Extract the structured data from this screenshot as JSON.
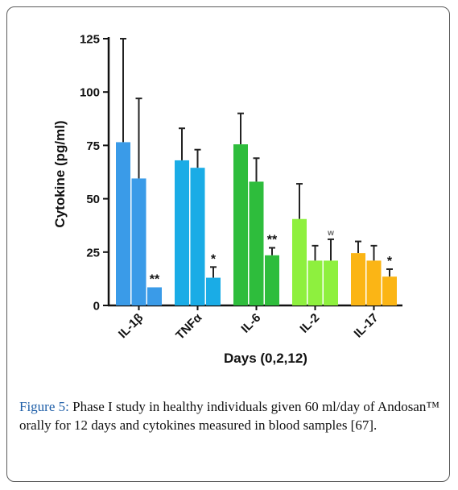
{
  "chart_data": {
    "type": "bar",
    "title": "",
    "ylabel": "Cytokine (pg/ml)",
    "xlabel": "Days (0,2,12)",
    "ylim": [
      0,
      125
    ],
    "yticks": [
      "0",
      "25",
      "50",
      "75",
      "100",
      "125"
    ],
    "ytick_values": [
      0,
      25,
      50,
      75,
      100,
      125
    ],
    "categories": [
      "IL-1β",
      "TNFα",
      "IL-6",
      "IL-2",
      "IL-17"
    ],
    "series_days": [
      0,
      2,
      12
    ],
    "groups": [
      {
        "name": "IL-1β",
        "color": "#3a9be8",
        "values": [
          76.5,
          59.5,
          8.5
        ],
        "errors": [
          125,
          97,
          0
        ],
        "marks": [
          "",
          "",
          "**"
        ]
      },
      {
        "name": "TNFα",
        "color": "#1aace6",
        "values": [
          68,
          64.5,
          13
        ],
        "errors": [
          83,
          73,
          18
        ],
        "marks": [
          "",
          "",
          "*"
        ]
      },
      {
        "name": "IL-6",
        "color": "#2ebd3c",
        "values": [
          75.5,
          58,
          23.5
        ],
        "errors": [
          90,
          69,
          27
        ],
        "marks": [
          "",
          "",
          "**"
        ]
      },
      {
        "name": "IL-2",
        "color": "#8ef03e",
        "values": [
          40.5,
          21,
          21
        ],
        "errors": [
          57,
          28,
          31
        ],
        "marks": [
          "",
          "",
          "w"
        ]
      },
      {
        "name": "IL-17",
        "color": "#fbb515",
        "values": [
          24.5,
          21,
          13.5
        ],
        "errors": [
          30,
          28,
          17
        ],
        "marks": [
          "",
          "",
          "*"
        ]
      }
    ],
    "grid": false,
    "legend": "none"
  },
  "caption": {
    "label": "Figure 5:",
    "text": "Phase I study in healthy individuals given 60 ml/day of Andosan™ orally for 12 days and cytokines measured in blood samples [67]."
  }
}
